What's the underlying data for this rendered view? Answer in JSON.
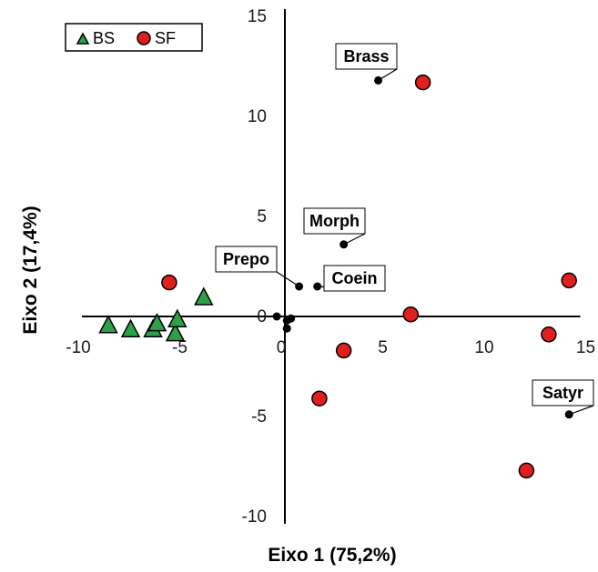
{
  "chart_data": {
    "type": "scatter",
    "xlabel": "Eixo 1 (75,2%)",
    "ylabel": "Eixo 2 (17,4%)",
    "xlim": [
      -10,
      15
    ],
    "ylim": [
      -10,
      15
    ],
    "x_ticks": [
      "-10",
      "-5",
      "0",
      "5",
      "10",
      "15"
    ],
    "y_ticks": [
      "-10",
      "-5",
      "0",
      "5",
      "10",
      "15"
    ],
    "grid": false,
    "legend": "top-left",
    "series": [
      {
        "name": "BS",
        "marker": "triangle",
        "color": "#2ea04a",
        "points": [
          {
            "x": -8.7,
            "y": -0.4
          },
          {
            "x": -7.6,
            "y": -0.6
          },
          {
            "x": -6.5,
            "y": -0.6
          },
          {
            "x": -6.3,
            "y": -0.3
          },
          {
            "x": -5.4,
            "y": -0.8
          },
          {
            "x": -5.3,
            "y": -0.1
          },
          {
            "x": -4.0,
            "y": 1.0
          }
        ]
      },
      {
        "name": "SF",
        "marker": "circle",
        "color": "#e01f1f",
        "points": [
          {
            "x": -5.7,
            "y": 1.7
          },
          {
            "x": 1.7,
            "y": -4.1
          },
          {
            "x": 2.9,
            "y": -1.7
          },
          {
            "x": 6.2,
            "y": 0.1
          },
          {
            "x": 6.8,
            "y": 11.7
          },
          {
            "x": 11.9,
            "y": -7.7
          },
          {
            "x": 13.0,
            "y": -0.9
          },
          {
            "x": 14.0,
            "y": 1.8
          }
        ]
      }
    ],
    "vectors": {
      "color": "#000000",
      "points": [
        {
          "x": -0.4,
          "y": 0.0
        },
        {
          "x": 0.1,
          "y": -0.2
        },
        {
          "x": 0.1,
          "y": -0.6
        },
        {
          "x": 0.3,
          "y": -0.1
        },
        {
          "x": 0.7,
          "y": 1.5,
          "label": "Prepo"
        },
        {
          "x": 1.6,
          "y": 1.5,
          "label": "Coein"
        },
        {
          "x": 2.9,
          "y": 3.6,
          "label": "Morph"
        },
        {
          "x": 4.6,
          "y": 11.8,
          "label": "Brass"
        },
        {
          "x": 14.0,
          "y": -4.9,
          "label": "Satyr"
        }
      ]
    }
  }
}
